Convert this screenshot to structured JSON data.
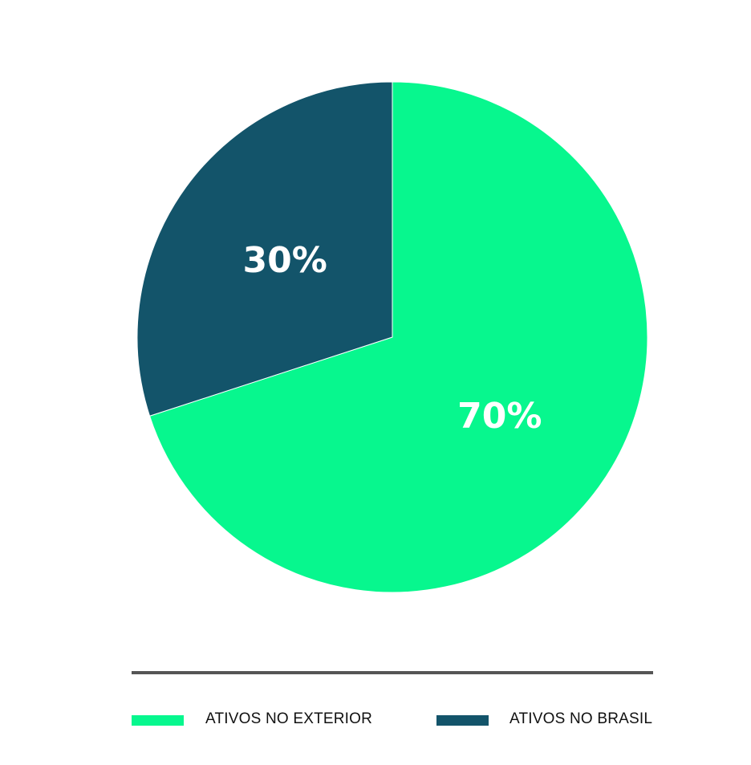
{
  "chart_data": {
    "type": "pie",
    "slices": [
      {
        "name": "ATIVOS NO EXTERIOR",
        "value": 70,
        "label": "70%",
        "color": "#07F78E"
      },
      {
        "name": "ATIVOS NO BRASIL",
        "value": 30,
        "label": "30%",
        "color": "#13546A"
      }
    ],
    "start_angle": "12 o'clock",
    "direction": "clockwise",
    "legend_placement": "bottom",
    "label_color": "#FFFFFF"
  }
}
